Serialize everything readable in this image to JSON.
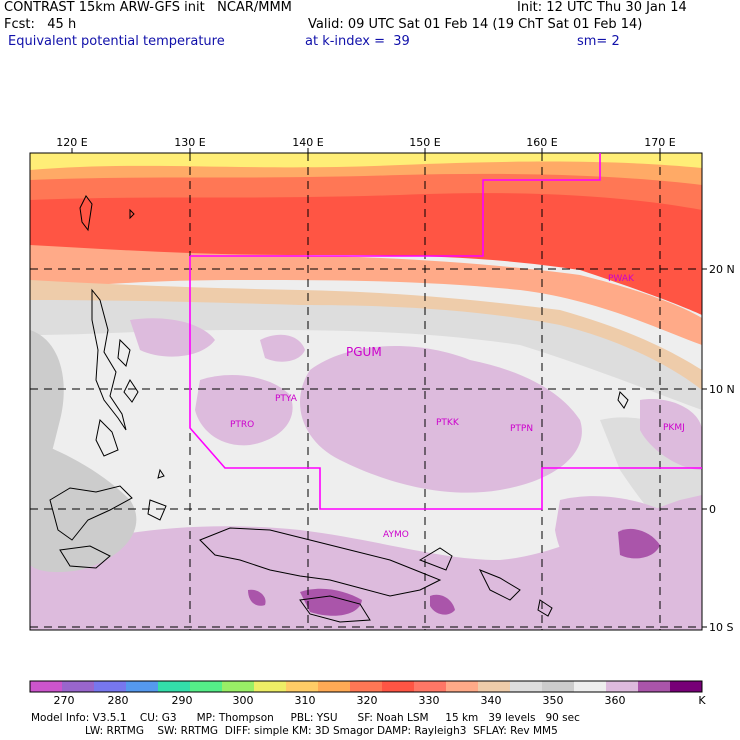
{
  "header": {
    "line1_left": "CONTRAST 15km ARW-GFS init   NCAR/MMM",
    "line1_right": "Init: 12 UTC Thu 30 Jan 14",
    "line2_left": "Fcst:   45 h",
    "line2_right": "Valid: 09 UTC Sat 01 Feb 14 (19 ChT Sat 01 Feb 14)",
    "line3_left": "Equivalent potential temperature",
    "line3_mid": "at k-index =  39",
    "line3_right": "sm= 2"
  },
  "map": {
    "lon_labels": [
      "120 E",
      "130 E",
      "140 E",
      "150 E",
      "160 E",
      "170 E"
    ],
    "lat_labels": [
      "20 N",
      "10 N",
      "0",
      "10 S"
    ],
    "stations": [
      "PGUM",
      "PTYA",
      "PTRO",
      "PTKK",
      "PTPN",
      "PKMJ",
      "PWAK",
      "AYMO"
    ],
    "boundary_color": "#ff00ff",
    "station_color": "#cc00cc"
  },
  "colorbar": {
    "labels": [
      "270",
      "280",
      "290",
      "300",
      "310",
      "320",
      "330",
      "340",
      "350",
      "360",
      "K"
    ],
    "colors": [
      "#cc55cc",
      "#9966cc",
      "#7777ee",
      "#5599ee",
      "#33ddaa",
      "#55ee88",
      "#99ee66",
      "#eeee66",
      "#ffcc66",
      "#ffaa55",
      "#ff7755",
      "#ff5544",
      "#ff7766",
      "#ffaa88",
      "#eeccaa",
      "#dddddd",
      "#cccccc",
      "#eeeeee",
      "#ddbbdd",
      "#aa55aa",
      "#770077"
    ]
  },
  "model_info": {
    "line1": "Model Info: V3.5.1    CU: G3      MP: Thompson     PBL: YSU      SF: Noah LSM     15 km   39 levels   90 sec",
    "line2": "LW: RRTMG    SW: RRTMG  DIFF: simple KM: 3D Smagor DAMP: Rayleigh3  SFLAY: Rev MM5"
  }
}
